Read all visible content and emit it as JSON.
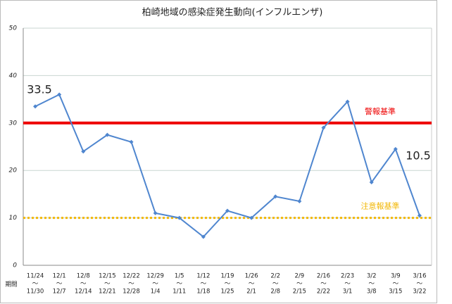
{
  "chart_data": {
    "type": "line",
    "title": "柏崎地域の感染症発生動向(インフルエンザ)",
    "x_label": "期間",
    "category_separator": "～",
    "categories": [
      [
        "11/24",
        "11/30"
      ],
      [
        "12/1",
        "12/7"
      ],
      [
        "12/8",
        "12/14"
      ],
      [
        "12/15",
        "12/21"
      ],
      [
        "12/22",
        "12/28"
      ],
      [
        "12/29",
        "1/4"
      ],
      [
        "1/5",
        "1/11"
      ],
      [
        "1/12",
        "1/18"
      ],
      [
        "1/19",
        "1/25"
      ],
      [
        "1/26",
        "2/1"
      ],
      [
        "2/2",
        "2/8"
      ],
      [
        "2/9",
        "2/15"
      ],
      [
        "2/16",
        "2/22"
      ],
      [
        "2/23",
        "3/1"
      ],
      [
        "3/2",
        "3/8"
      ],
      [
        "3/9",
        "3/15"
      ],
      [
        "3/16",
        "3/22"
      ]
    ],
    "series": [
      {
        "color": "#4f86cf",
        "values": [
          33.5,
          36,
          24,
          27.5,
          26,
          11,
          10,
          6,
          11.5,
          10,
          14.5,
          13.5,
          29,
          34.5,
          17.5,
          24.5,
          10.5
        ],
        "value_labels": [
          "33.5",
          null,
          null,
          null,
          null,
          null,
          null,
          null,
          null,
          null,
          null,
          null,
          null,
          null,
          null,
          null,
          "10.5"
        ]
      }
    ],
    "reference_lines": [
      {
        "value": 30,
        "label": "警報基準",
        "color": "#ee0000",
        "style": "solid"
      },
      {
        "value": 10,
        "label": "注意報基準",
        "color": "#f2b705",
        "style": "dotted"
      }
    ],
    "ylim": [
      0,
      50
    ],
    "yticks": [
      0,
      10,
      20,
      30,
      40,
      50
    ],
    "grid": true
  }
}
